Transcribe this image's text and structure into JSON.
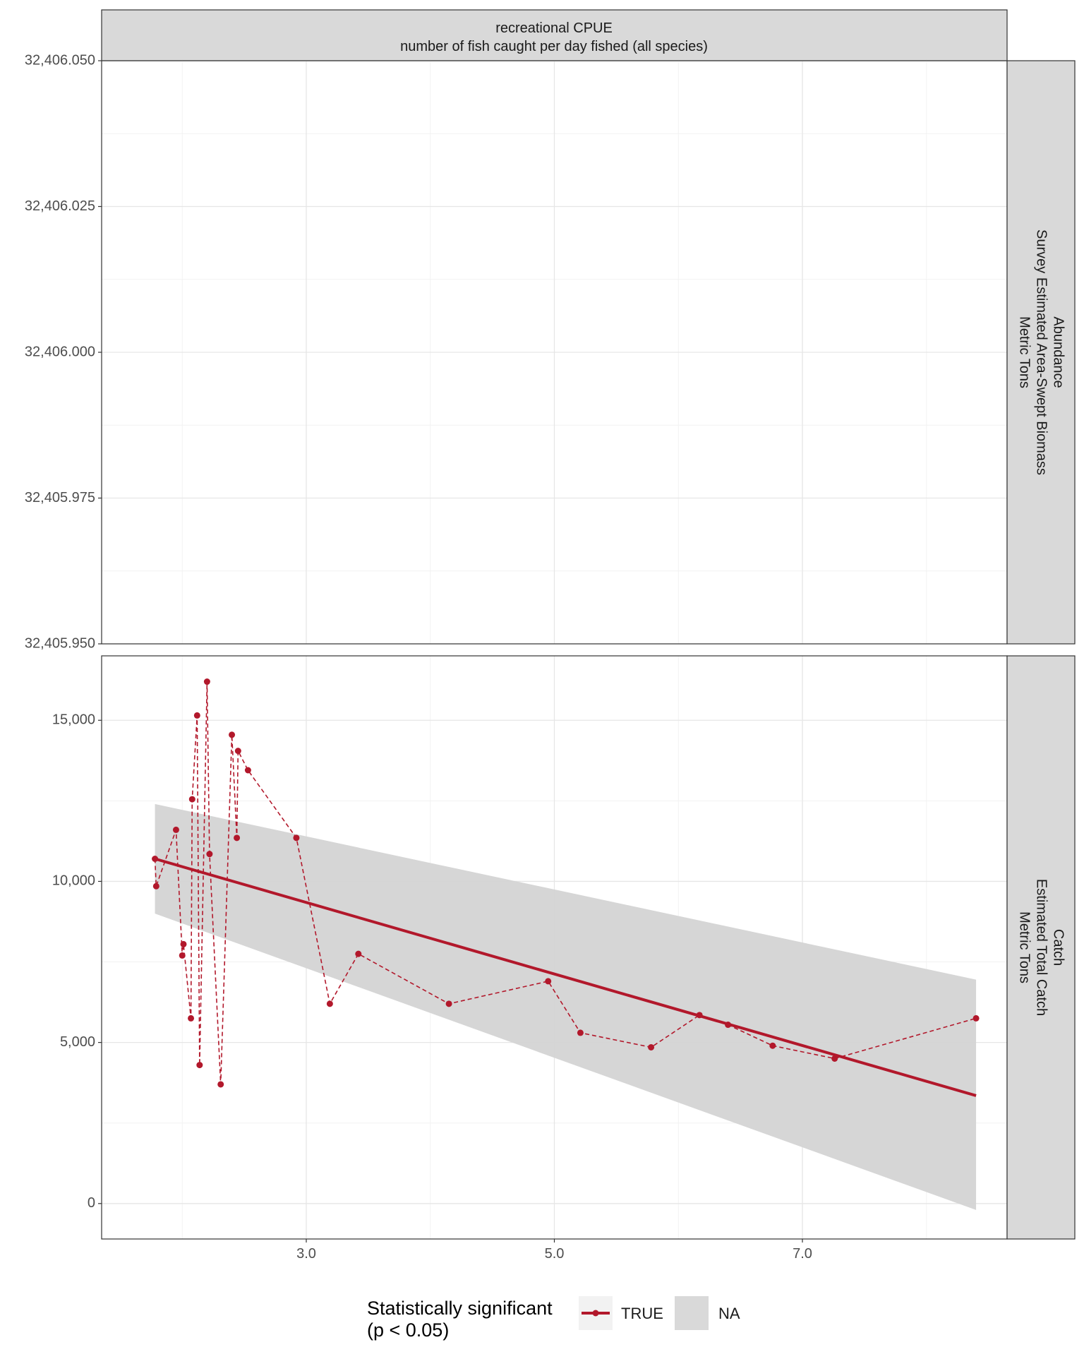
{
  "chart_data": {
    "type": "line",
    "title": "",
    "xlabel": "",
    "ylabel": "",
    "column_strip": {
      "line1": "recreational CPUE",
      "line2": "number of fish caught per day fished (all species)"
    },
    "x_axis": {
      "range": [
        1.35,
        8.65
      ],
      "ticks": [
        3.0,
        5.0,
        7.0
      ],
      "tick_labels": [
        "3.0",
        "5.0",
        "7.0"
      ]
    },
    "panels": [
      {
        "strip": {
          "line1": "Abundance",
          "line2": "Survey Estimated Area-Swept Biomass",
          "line3": "Metric Tons"
        },
        "ylim": [
          32405.95,
          32406.05
        ],
        "y_ticks": [
          32405.95,
          32405.975,
          32406.0,
          32406.025,
          32406.05
        ],
        "y_tick_labels": [
          "32,405.950",
          "32,405.975",
          "32,406.000",
          "32,406.025",
          "32,406.050"
        ],
        "series": []
      },
      {
        "strip": {
          "line1": "Catch",
          "line2": "Estimated Total Catch",
          "line3": "Metric Tons"
        },
        "ylim": [
          -1100,
          17000
        ],
        "y_ticks": [
          0,
          5000,
          10000,
          15000
        ],
        "y_tick_labels": [
          "0",
          "5,000",
          "10,000",
          "15,000"
        ],
        "series": [
          {
            "kind": "observed",
            "x": [
              1.78,
              1.79,
              1.95,
              2.0,
              2.01,
              2.07,
              2.08,
              2.12,
              2.14,
              2.2,
              2.22,
              2.31,
              2.4,
              2.44,
              2.45,
              2.53,
              2.92,
              3.19,
              3.42,
              4.15,
              4.95,
              5.21,
              5.78,
              6.17,
              6.4,
              6.76,
              7.26,
              8.4
            ],
            "y": [
              10700,
              9850,
              11600,
              7700,
              8050,
              5750,
              12550,
              15150,
              4300,
              16200,
              10850,
              3700,
              14550,
              11350,
              14050,
              13450,
              11350,
              6200,
              7750,
              6200,
              6900,
              5300,
              4850,
              5850,
              5550,
              4900,
              4500,
              5750
            ]
          },
          {
            "kind": "trend",
            "x": [
              1.78,
              8.4
            ],
            "y": [
              10700,
              3350
            ],
            "ci_lower": [
              9000,
              -200
            ],
            "ci_upper": [
              12400,
              6950
            ]
          }
        ]
      }
    ],
    "legend": {
      "title_line1": "Statistically significant",
      "title_line2": "(p < 0.05)",
      "position": "bottom",
      "entries": [
        {
          "label": "TRUE",
          "color": "#b2182b"
        },
        {
          "label": "NA",
          "color": "#d9d9d9"
        }
      ]
    },
    "colors": {
      "trend_line": "#b2182b",
      "points": "#b2182b",
      "confidence_band": "#d4d4d4",
      "strip_fill": "#d9d9d9",
      "grid": "#ebebeb"
    },
    "grid": true
  }
}
